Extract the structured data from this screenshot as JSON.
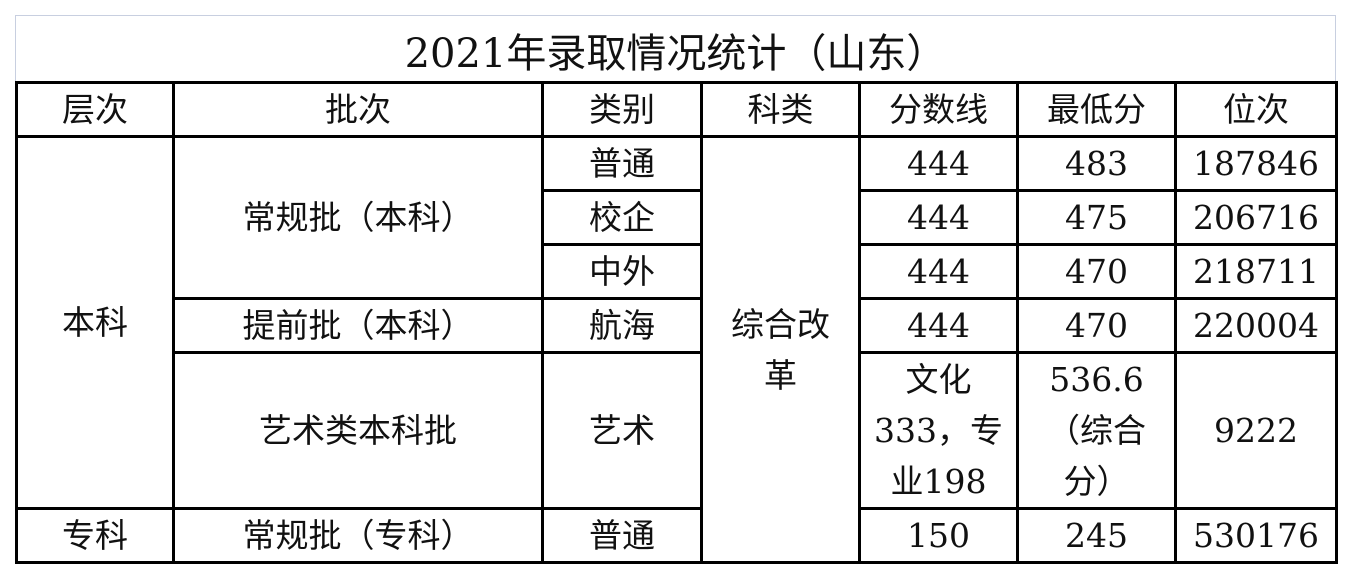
{
  "title": "2021年录取情况统计（山东）",
  "headers": [
    "层次",
    "批次",
    "类别",
    "科类",
    "分数线",
    "最低分",
    "位次"
  ],
  "rows": {
    "level_benke": "本科",
    "level_zhuanke": "专科",
    "batch_regular_benke": "常规批（本科）",
    "batch_early_benke": "提前批（本科）",
    "batch_art_benke": "艺术类本科批",
    "batch_regular_zhuanke": "常规批（专科）",
    "subject_merged": "综合改革",
    "r1": {
      "category": "普通",
      "cutoff": "444",
      "min": "483",
      "rank": "187846"
    },
    "r2": {
      "category": "校企",
      "cutoff": "444",
      "min": "475",
      "rank": "206716"
    },
    "r3": {
      "category": "中外",
      "cutoff": "444",
      "min": "470",
      "rank": "218711"
    },
    "r4": {
      "category": "航海",
      "cutoff": "444",
      "min": "470",
      "rank": "220004"
    },
    "r5": {
      "category": "艺术",
      "cutoff_lines": [
        "文化",
        "333，专",
        "业198"
      ],
      "min_lines": [
        "536.6",
        "（综合",
        "分）"
      ],
      "rank": "9222"
    },
    "r6": {
      "category": "普通",
      "cutoff": "150",
      "min": "245",
      "rank": "530176"
    }
  }
}
